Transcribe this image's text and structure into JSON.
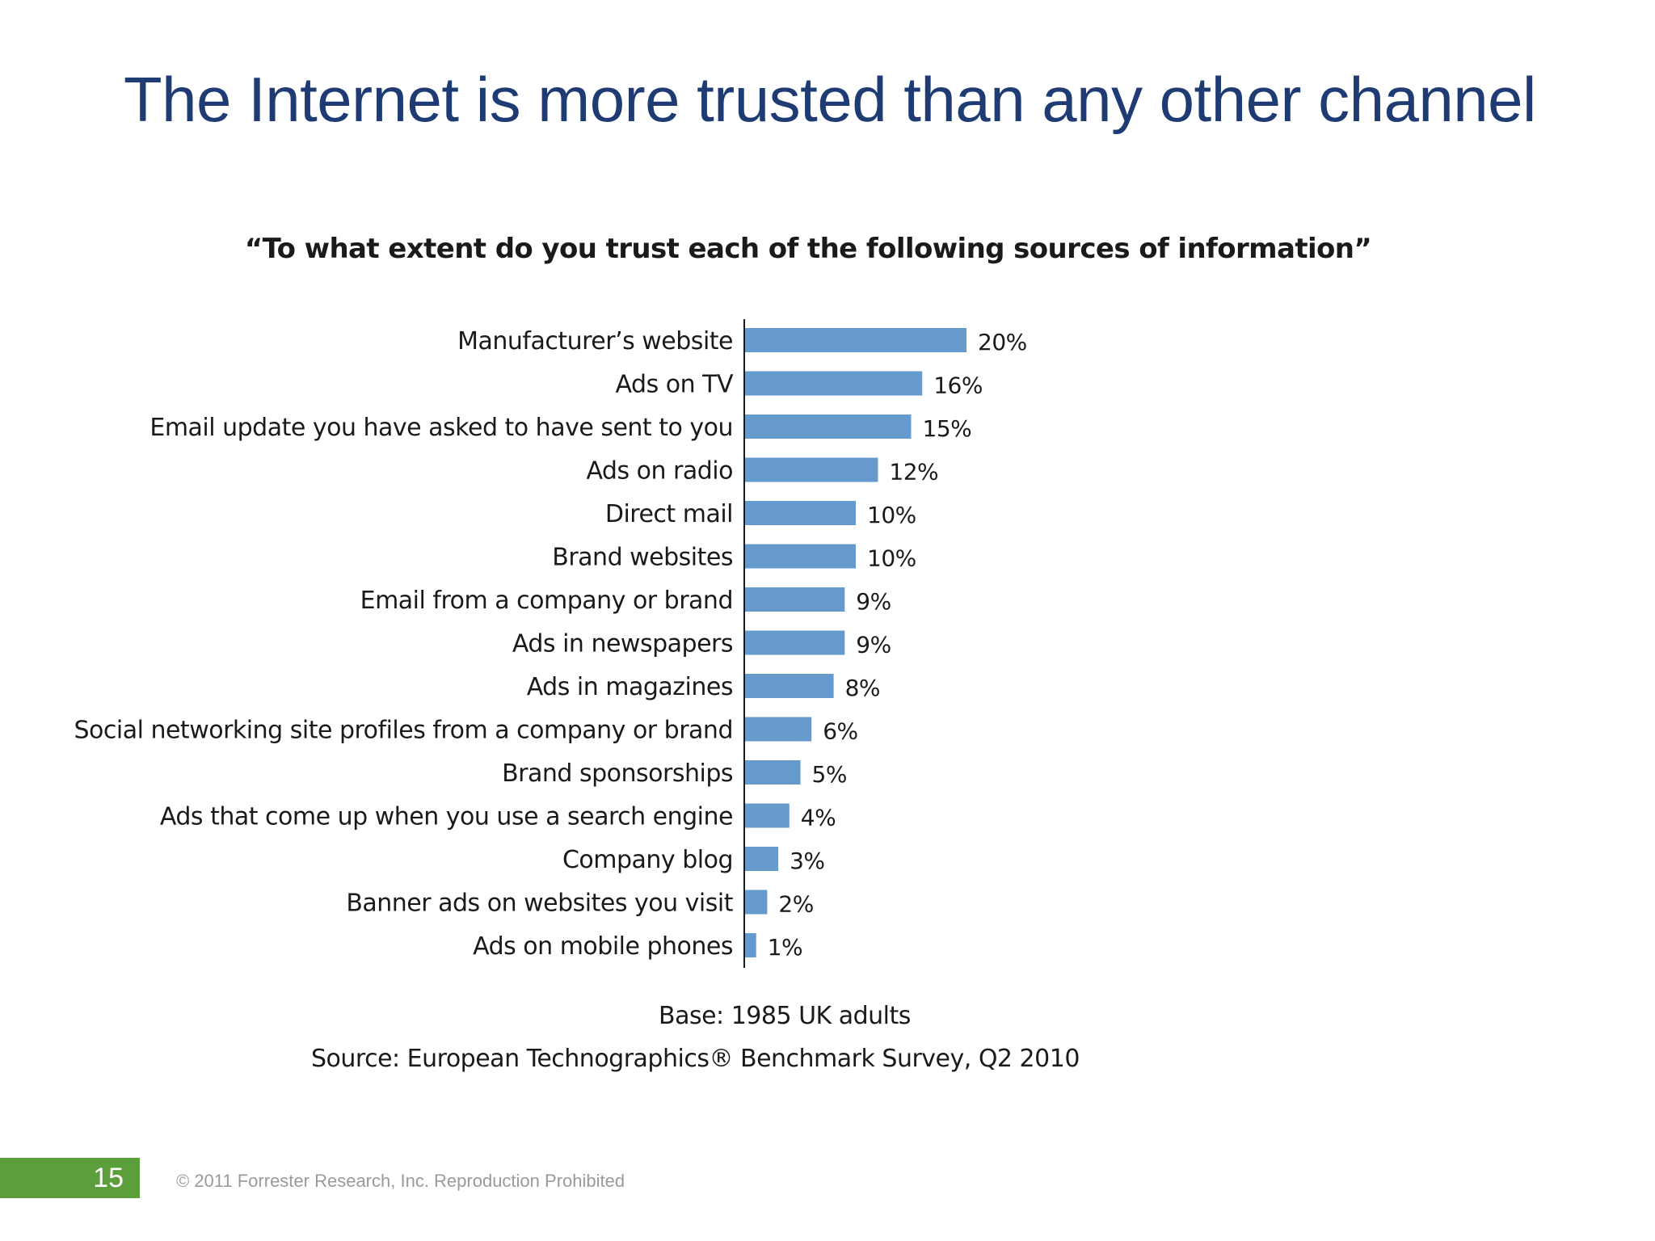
{
  "slide": {
    "title": "The Internet is more trusted than any other channel",
    "page_number": "15",
    "copyright": "© 2011 Forrester Research, Inc. Reproduction Prohibited"
  },
  "chart_data": {
    "type": "bar",
    "orientation": "horizontal",
    "title": "“To what extent do you trust each of the following sources of information”",
    "categories": [
      "Manufacturer’s website",
      "Ads on TV",
      "Email update you have asked to have sent to you",
      "Ads on radio",
      "Direct mail",
      "Brand websites",
      "Email from a company or brand",
      "Ads in newspapers",
      "Ads in magazines",
      "Social networking site profiles from a company or brand",
      "Brand sponsorships",
      "Ads that come up when you use a search engine",
      "Company blog",
      "Banner ads on websites you visit",
      "Ads on mobile phones"
    ],
    "values": [
      20,
      16,
      15,
      12,
      10,
      10,
      9,
      9,
      8,
      6,
      5,
      4,
      3,
      2,
      1
    ],
    "value_labels": [
      "20%",
      "16%",
      "15%",
      "12%",
      "10%",
      "10%",
      "9%",
      "9%",
      "8%",
      "6%",
      "5%",
      "4%",
      "3%",
      "2%",
      "1%"
    ],
    "unit": "%",
    "xlim": [
      0,
      20
    ],
    "grid": false,
    "bar_color": "#6699cc",
    "base_note": "Base: 1985 UK adults",
    "source_note": "Source: European Technographics® Benchmark Survey, Q2 2010"
  },
  "colors": {
    "title": "#1f3b73",
    "footer_green": "#5c9e3c",
    "copyright_gray": "#9a9a9a"
  }
}
